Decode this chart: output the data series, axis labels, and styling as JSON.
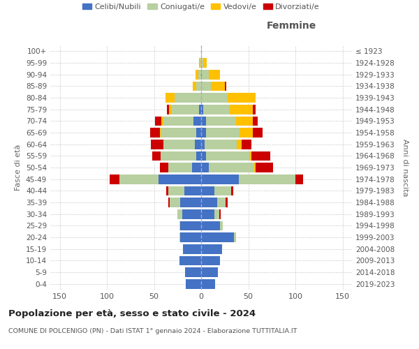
{
  "age_groups": [
    "0-4",
    "5-9",
    "10-14",
    "15-19",
    "20-24",
    "25-29",
    "30-34",
    "35-39",
    "40-44",
    "45-49",
    "50-54",
    "55-59",
    "60-64",
    "65-69",
    "70-74",
    "75-79",
    "80-84",
    "85-89",
    "90-94",
    "95-99",
    "100+"
  ],
  "birth_years": [
    "2019-2023",
    "2014-2018",
    "2009-2013",
    "2004-2008",
    "1999-2003",
    "1994-1998",
    "1989-1993",
    "1984-1988",
    "1979-1983",
    "1974-1978",
    "1969-1973",
    "1964-1968",
    "1959-1963",
    "1954-1958",
    "1949-1953",
    "1944-1948",
    "1939-1943",
    "1934-1938",
    "1929-1933",
    "1924-1928",
    "≤ 1923"
  ],
  "colors": {
    "celibi": "#4472c4",
    "coniugati": "#b8cfa0",
    "vedovi": "#ffc000",
    "divorziati": "#cc0000"
  },
  "male": {
    "celibi": [
      16,
      17,
      23,
      19,
      22,
      22,
      20,
      22,
      18,
      45,
      10,
      5,
      7,
      5,
      8,
      2,
      0,
      0,
      0,
      0,
      0
    ],
    "coniugati": [
      0,
      0,
      0,
      0,
      1,
      1,
      5,
      11,
      17,
      42,
      25,
      38,
      33,
      38,
      32,
      30,
      28,
      5,
      3,
      1,
      0
    ],
    "vedovi": [
      0,
      0,
      0,
      0,
      0,
      0,
      0,
      0,
      0,
      0,
      0,
      0,
      0,
      1,
      2,
      2,
      10,
      4,
      3,
      1,
      0
    ],
    "divorziati": [
      0,
      0,
      0,
      0,
      0,
      0,
      0,
      2,
      2,
      10,
      9,
      9,
      13,
      10,
      7,
      2,
      0,
      0,
      0,
      0,
      0
    ]
  },
  "female": {
    "celibi": [
      15,
      18,
      20,
      22,
      35,
      20,
      14,
      17,
      14,
      40,
      8,
      5,
      4,
      5,
      5,
      2,
      0,
      0,
      1,
      0,
      0
    ],
    "coniugati": [
      0,
      0,
      0,
      0,
      2,
      3,
      5,
      9,
      18,
      60,
      48,
      46,
      34,
      36,
      32,
      28,
      28,
      10,
      7,
      2,
      0
    ],
    "vedovi": [
      0,
      0,
      0,
      0,
      0,
      0,
      0,
      0,
      0,
      0,
      2,
      2,
      5,
      14,
      18,
      25,
      30,
      15,
      12,
      4,
      1
    ],
    "divorziati": [
      0,
      0,
      0,
      0,
      0,
      0,
      2,
      2,
      2,
      8,
      18,
      20,
      10,
      10,
      5,
      3,
      0,
      2,
      0,
      0,
      0
    ]
  },
  "xlim": 160,
  "title": "Popolazione per età, sesso e stato civile - 2024",
  "subtitle": "COMUNE DI POLCENIGO (PN) - Dati ISTAT 1° gennaio 2024 - Elaborazione TUTTITALIA.IT",
  "xlabel_right": "Femmine",
  "ylabel_left": "Fasce di età",
  "ylabel_right": "Anni di nascita",
  "legend_labels": [
    "Celibi/Nubili",
    "Coniugati/e",
    "Vedovi/e",
    "Divorziati/e"
  ],
  "bg_color": "#ffffff",
  "grid_color": "#cccccc"
}
